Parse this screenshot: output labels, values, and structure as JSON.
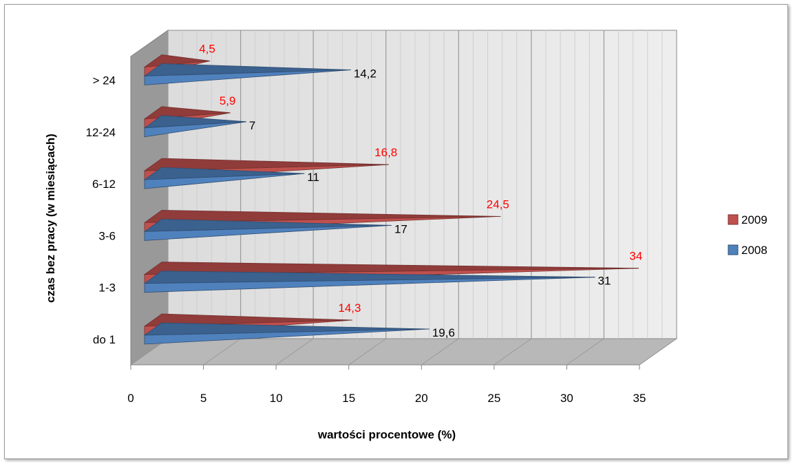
{
  "chart_data": {
    "type": "bar",
    "orientation": "horizontal",
    "style": "3d-pyramid",
    "title": "",
    "xlabel": "wartości procentowe (%)",
    "ylabel": "czas bez pracy (w miesiącach)",
    "xlim": [
      0,
      35
    ],
    "x_ticks": [
      "0",
      "5",
      "10",
      "15",
      "20",
      "25",
      "30",
      "35"
    ],
    "grid": "vertical",
    "legend_position": "right",
    "categories": [
      "do 1",
      "1-3",
      "3-6",
      "6-12",
      "12-24",
      "> 24"
    ],
    "series": [
      {
        "name": "2009",
        "color": "#c0504d",
        "label_color": "#ff0000",
        "values": [
          14.3,
          34,
          24.5,
          16.8,
          5.9,
          4.5
        ],
        "labels": [
          "14,3",
          "34",
          "24,5",
          "16,8",
          "5,9",
          "4,5"
        ]
      },
      {
        "name": "2008",
        "color": "#4f81bd",
        "label_color": "#000000",
        "values": [
          19.6,
          31,
          17,
          11,
          7,
          14.2
        ],
        "labels": [
          "19,6",
          "31",
          "17",
          "11",
          "7",
          "14,2"
        ]
      }
    ]
  }
}
